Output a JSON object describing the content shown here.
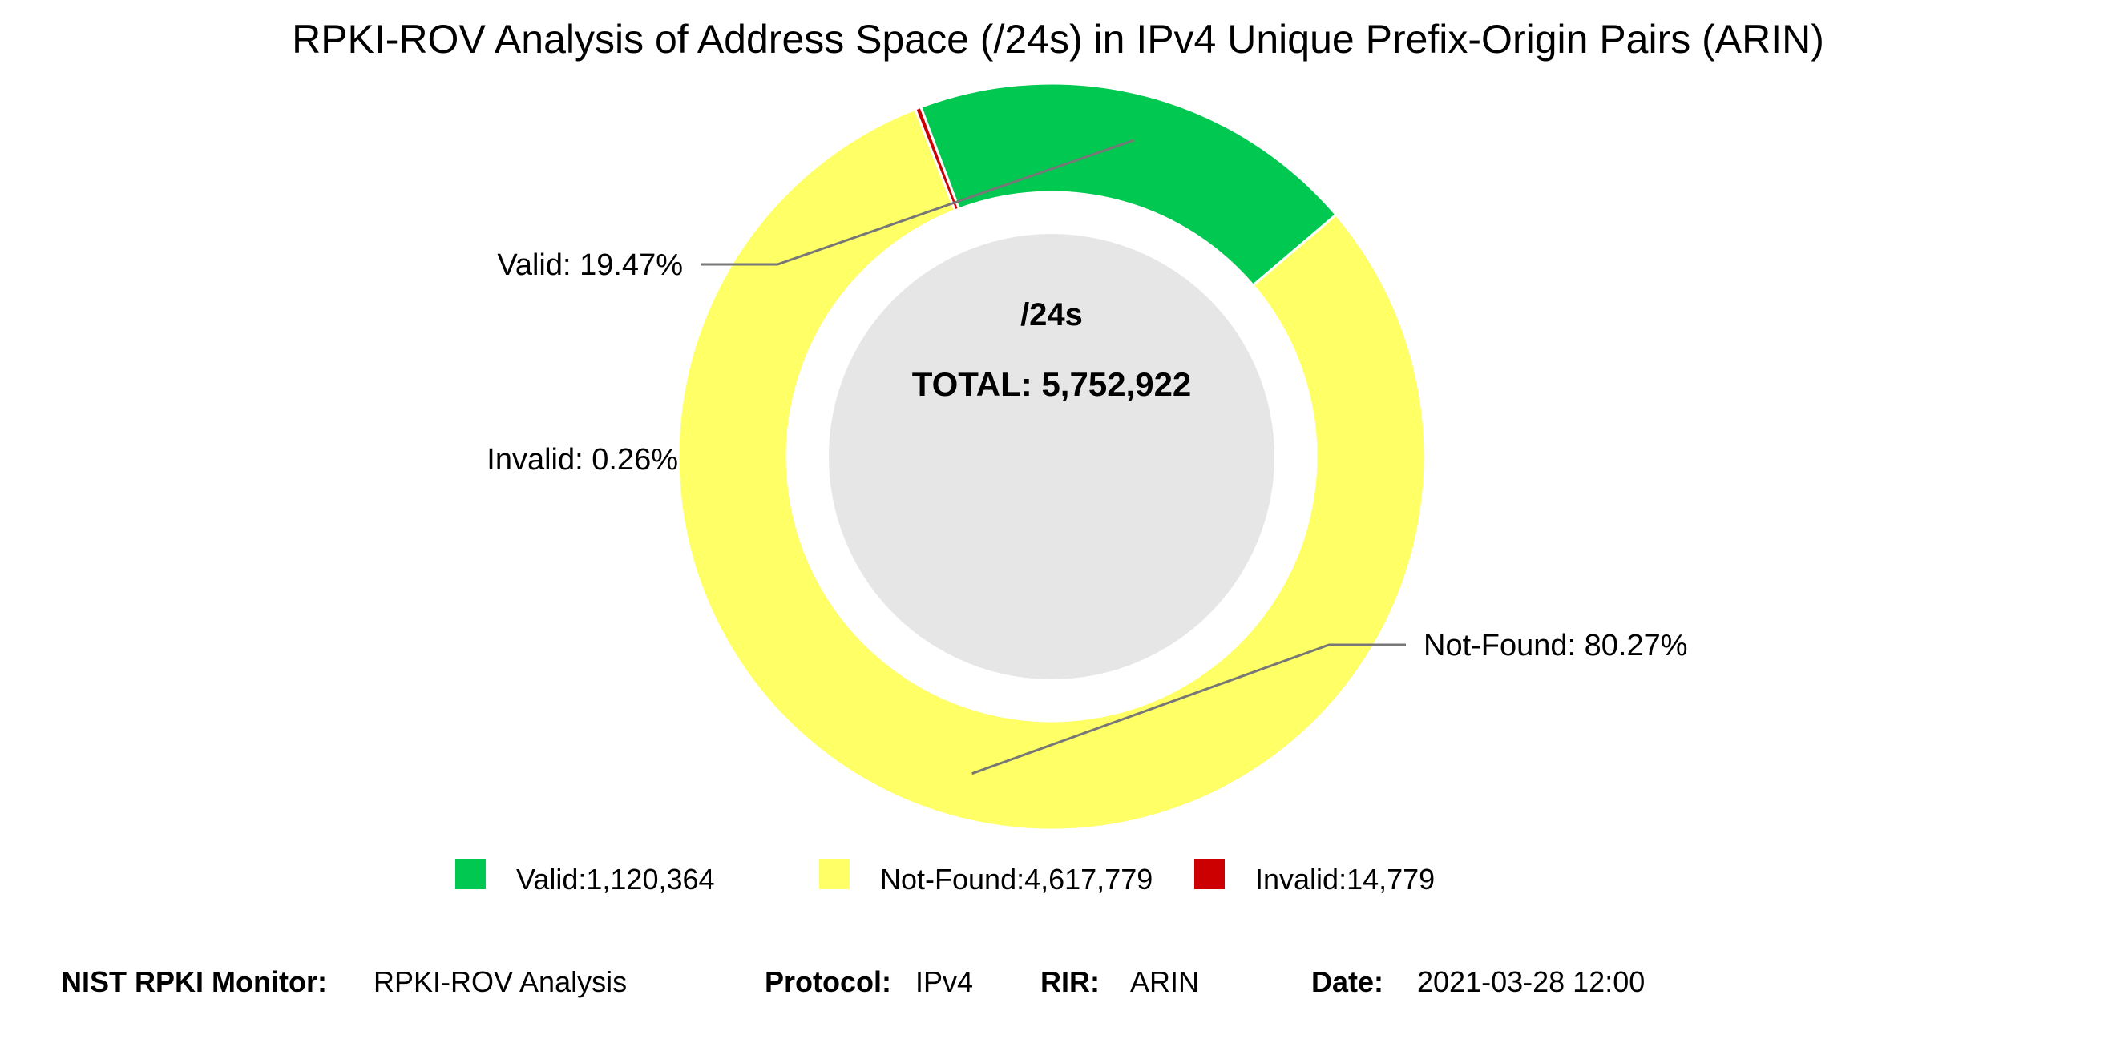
{
  "chart_data": {
    "type": "pie",
    "style": "donut",
    "title": "RPKI-ROV Analysis of Address Space (/24s) in IPv4 Unique Prefix-Origin Pairs (ARIN)",
    "center": {
      "unit": "/24s",
      "total_text": "TOTAL: 5,752,922",
      "total": 5752922
    },
    "slices": [
      {
        "name": "Valid",
        "value": 1120364,
        "percent": 19.47,
        "color": "#00c851",
        "label": "Valid: 19.47%",
        "legend": "Valid:1,120,364"
      },
      {
        "name": "Not-Found",
        "value": 4617779,
        "percent": 80.27,
        "color": "#ffff66",
        "label": "Not-Found: 80.27%",
        "legend": "Not-Found:4,617,779"
      },
      {
        "name": "Invalid",
        "value": 14779,
        "percent": 0.26,
        "color": "#cc0000",
        "label": "Invalid: 0.26%",
        "legend": "Invalid:14,779"
      }
    ],
    "legend_position": "bottom",
    "center_fill": "#e6e6e6"
  },
  "footer": {
    "monitor_label": "NIST RPKI Monitor:",
    "monitor_value": "RPKI-ROV Analysis",
    "protocol_label": "Protocol:",
    "protocol_value": "IPv4",
    "rir_label": "RIR:",
    "rir_value": "ARIN",
    "date_label": "Date:",
    "date_value": "2021-03-28 12:00"
  }
}
